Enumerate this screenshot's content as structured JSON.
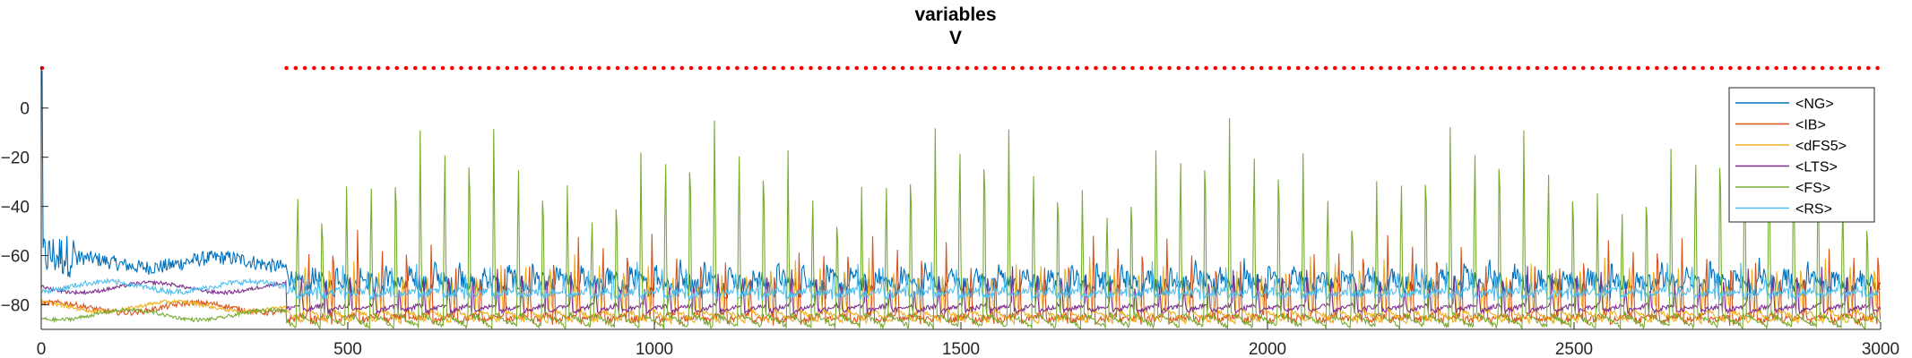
{
  "chart_data": {
    "type": "line",
    "title": "variables",
    "subtitle": "V",
    "xlabel": "",
    "ylabel": "",
    "xlim": [
      0,
      3000
    ],
    "ylim": [
      -90,
      17
    ],
    "xticks": [
      0,
      500,
      1000,
      1500,
      2000,
      2500,
      3000
    ],
    "yticks": [
      0,
      -20,
      -40,
      -60,
      -80
    ],
    "grid": false,
    "legend_position": "top-right",
    "series": [
      {
        "name": "<NG>",
        "color": "#0072BD",
        "baseline": -74,
        "spike_to": -70,
        "early_level": -58,
        "noise": 4
      },
      {
        "name": "<IB>",
        "color": "#D95319",
        "baseline": -84,
        "spike_to": -48,
        "early_level": -80,
        "noise": 1.5
      },
      {
        "name": "<dFS5>",
        "color": "#EDB120",
        "baseline": -87,
        "spike_to": -66,
        "early_level": -78,
        "noise": 1
      },
      {
        "name": "<LTS>",
        "color": "#7E2F8E",
        "baseline": -80,
        "spike_to": -62,
        "early_level": -70,
        "noise": 1
      },
      {
        "name": "<FS>",
        "color": "#77AC30",
        "baseline": -89,
        "spike_to": -10,
        "early_level": -82,
        "noise": 1
      },
      {
        "name": "<RS>",
        "color": "#4DBEEE",
        "baseline": -74,
        "spike_to": -60,
        "early_level": -72,
        "noise": 1.5
      }
    ],
    "spike_period": 40,
    "activity_onset": 400,
    "stimulus_marker": {
      "color": "#FF0000",
      "y": 17,
      "x_start": 400,
      "x_end": 3000,
      "spacing": 15
    }
  }
}
